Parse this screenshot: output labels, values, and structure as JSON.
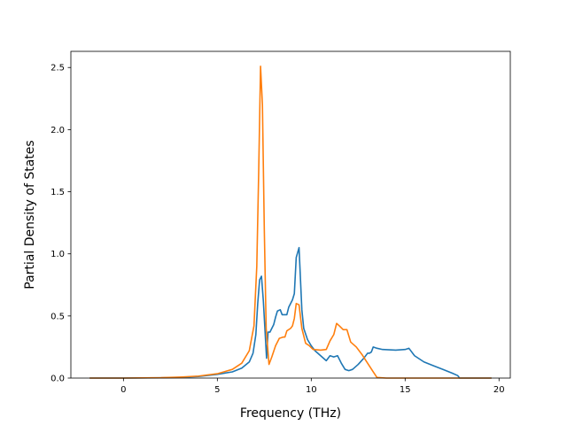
{
  "chart_data": {
    "type": "line",
    "title": "",
    "xlabel": "Frequency (THz)",
    "ylabel": "Partial Density of States",
    "xlim": [
      -2.8,
      20.6
    ],
    "ylim": [
      0,
      2.63
    ],
    "xticks": [
      0,
      5,
      10,
      15,
      20
    ],
    "xtick_labels": [
      "0",
      "5",
      "10",
      "15",
      "20"
    ],
    "yticks": [
      0,
      0.5,
      1.0,
      1.5,
      2.0,
      2.5
    ],
    "ytick_labels": [
      "0.0",
      "0.5",
      "1.0",
      "1.5",
      "2.0",
      "2.5"
    ],
    "grid": false,
    "series": [
      {
        "color": "#1f77b4",
        "points": [
          [
            -1.8,
            0
          ],
          [
            0,
            0
          ],
          [
            2,
            0.002
          ],
          [
            3,
            0.006
          ],
          [
            4,
            0.013
          ],
          [
            5,
            0.03
          ],
          [
            5.8,
            0.05
          ],
          [
            6.3,
            0.08
          ],
          [
            6.7,
            0.13
          ],
          [
            6.9,
            0.2
          ],
          [
            7.05,
            0.35
          ],
          [
            7.15,
            0.6
          ],
          [
            7.25,
            0.79
          ],
          [
            7.35,
            0.82
          ],
          [
            7.45,
            0.62
          ],
          [
            7.55,
            0.35
          ],
          [
            7.62,
            0.16
          ],
          [
            7.7,
            0.37
          ],
          [
            7.8,
            0.37
          ],
          [
            8.0,
            0.43
          ],
          [
            8.1,
            0.49
          ],
          [
            8.2,
            0.54
          ],
          [
            8.35,
            0.55
          ],
          [
            8.45,
            0.51
          ],
          [
            8.7,
            0.51
          ],
          [
            8.8,
            0.57
          ],
          [
            9.0,
            0.63
          ],
          [
            9.1,
            0.68
          ],
          [
            9.2,
            0.97
          ],
          [
            9.35,
            1.05
          ],
          [
            9.5,
            0.55
          ],
          [
            9.6,
            0.4
          ],
          [
            9.8,
            0.31
          ],
          [
            10.0,
            0.26
          ],
          [
            10.2,
            0.22
          ],
          [
            10.5,
            0.18
          ],
          [
            10.8,
            0.14
          ],
          [
            11.0,
            0.18
          ],
          [
            11.2,
            0.17
          ],
          [
            11.4,
            0.18
          ],
          [
            11.6,
            0.12
          ],
          [
            11.8,
            0.07
          ],
          [
            12.0,
            0.06
          ],
          [
            12.2,
            0.07
          ],
          [
            12.5,
            0.11
          ],
          [
            12.8,
            0.16
          ],
          [
            13.0,
            0.2
          ],
          [
            13.1,
            0.2
          ],
          [
            13.2,
            0.21
          ],
          [
            13.3,
            0.25
          ],
          [
            13.5,
            0.24
          ],
          [
            13.8,
            0.23
          ],
          [
            14.5,
            0.225
          ],
          [
            15.0,
            0.23
          ],
          [
            15.2,
            0.24
          ],
          [
            15.5,
            0.18
          ],
          [
            16.0,
            0.13
          ],
          [
            16.5,
            0.1
          ],
          [
            17.0,
            0.07
          ],
          [
            17.5,
            0.04
          ],
          [
            17.8,
            0.02
          ],
          [
            17.9,
            0
          ],
          [
            19.6,
            0
          ]
        ]
      },
      {
        "color": "#ff7f0e",
        "points": [
          [
            -1.8,
            0
          ],
          [
            0,
            0
          ],
          [
            2,
            0.003
          ],
          [
            3,
            0.008
          ],
          [
            4,
            0.016
          ],
          [
            5,
            0.035
          ],
          [
            5.8,
            0.07
          ],
          [
            6.3,
            0.12
          ],
          [
            6.7,
            0.22
          ],
          [
            6.95,
            0.42
          ],
          [
            7.1,
            0.9
          ],
          [
            7.2,
            1.65
          ],
          [
            7.3,
            2.51
          ],
          [
            7.4,
            2.2
          ],
          [
            7.5,
            1.2
          ],
          [
            7.6,
            0.4
          ],
          [
            7.75,
            0.11
          ],
          [
            7.9,
            0.17
          ],
          [
            8.1,
            0.26
          ],
          [
            8.3,
            0.32
          ],
          [
            8.5,
            0.33
          ],
          [
            8.6,
            0.33
          ],
          [
            8.7,
            0.38
          ],
          [
            8.9,
            0.4
          ],
          [
            9.0,
            0.42
          ],
          [
            9.1,
            0.48
          ],
          [
            9.2,
            0.6
          ],
          [
            9.35,
            0.59
          ],
          [
            9.5,
            0.4
          ],
          [
            9.7,
            0.28
          ],
          [
            9.9,
            0.26
          ],
          [
            10.1,
            0.23
          ],
          [
            10.5,
            0.225
          ],
          [
            10.8,
            0.23
          ],
          [
            11.0,
            0.3
          ],
          [
            11.2,
            0.35
          ],
          [
            11.35,
            0.44
          ],
          [
            11.5,
            0.42
          ],
          [
            11.7,
            0.39
          ],
          [
            11.9,
            0.39
          ],
          [
            12.1,
            0.29
          ],
          [
            12.4,
            0.25
          ],
          [
            12.7,
            0.19
          ],
          [
            13.0,
            0.12
          ],
          [
            13.3,
            0.05
          ],
          [
            13.5,
            0.005
          ],
          [
            14,
            0
          ],
          [
            19.6,
            0
          ]
        ]
      }
    ]
  }
}
